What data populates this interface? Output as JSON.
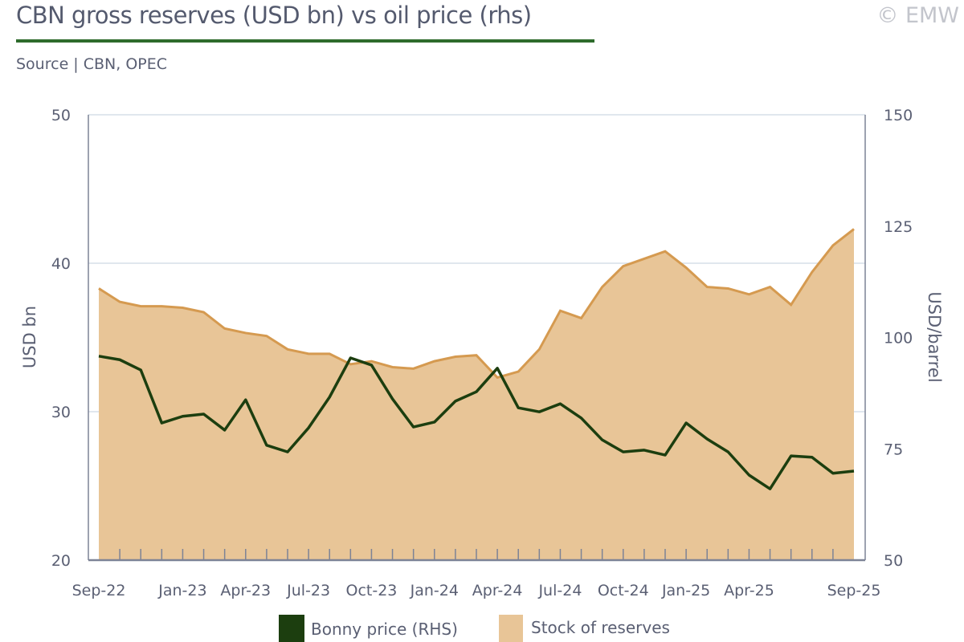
{
  "header": {
    "title": "CBN gross reserves (USD bn) vs oil price (rhs)",
    "source": "Source | CBN, OPEC",
    "copyright": "© EMW"
  },
  "chart_data": {
    "type": "line",
    "title": "CBN gross reserves (USD bn) vs oil price (rhs)",
    "ylabel": "USD bn",
    "y2label": "USD/barrel",
    "ylim": [
      20,
      50
    ],
    "y2lim": [
      50,
      150
    ],
    "yticks": [
      20,
      30,
      40,
      50
    ],
    "y2ticks": [
      50,
      75,
      100,
      125,
      150
    ],
    "grid": true,
    "legend_position": "bottom",
    "x": [
      "Sep-22",
      "Oct-22",
      "Nov-22",
      "Dec-22",
      "Jan-23",
      "Feb-23",
      "Mar-23",
      "Apr-23",
      "May-23",
      "Jun-23",
      "Jul-23",
      "Aug-23",
      "Sep-23",
      "Oct-23",
      "Nov-23",
      "Dec-23",
      "Jan-24",
      "Feb-24",
      "Mar-24",
      "Apr-24",
      "May-24",
      "Jun-24",
      "Jul-24",
      "Aug-24",
      "Sep-24",
      "Oct-24",
      "Nov-24",
      "Dec-24",
      "Jan-25",
      "Feb-25",
      "Mar-25",
      "Apr-25",
      "May-25",
      "Jun-25",
      "Jul-25",
      "Aug-25",
      "Sep-25"
    ],
    "xtick_labels": [
      "Sep-22",
      "Jan-23",
      "Apr-23",
      "Jul-23",
      "Oct-23",
      "Jan-24",
      "Apr-24",
      "Jul-24",
      "Oct-24",
      "Jan-25",
      "Apr-25",
      "Sep-25"
    ],
    "series": [
      {
        "name": "Stock of reserves",
        "axis": "left",
        "style": "area",
        "color": "#e8c597",
        "line_color": "#d59a50",
        "values": [
          38.3,
          37.4,
          37.1,
          37.1,
          37.0,
          36.7,
          35.6,
          35.3,
          35.1,
          34.2,
          33.9,
          33.9,
          33.2,
          33.4,
          33.0,
          32.9,
          33.4,
          33.7,
          33.8,
          32.3,
          32.7,
          34.2,
          36.8,
          36.3,
          38.4,
          39.8,
          40.3,
          40.8,
          39.7,
          38.4,
          38.3,
          37.9,
          38.4,
          37.2,
          39.4,
          41.2,
          42.3
        ]
      },
      {
        "name": "Bonny price (RHS)",
        "axis": "right",
        "style": "line",
        "color": "#1c3e0f",
        "values": [
          95.8,
          95.0,
          92.7,
          80.8,
          82.3,
          82.8,
          79.2,
          86.0,
          75.8,
          74.3,
          79.7,
          86.6,
          95.4,
          93.8,
          86.2,
          79.9,
          81.0,
          85.7,
          87.8,
          93.1,
          84.2,
          83.3,
          85.1,
          81.9,
          77.0,
          74.3,
          74.7,
          73.6,
          80.8,
          77.2,
          74.3,
          69.1,
          66.0,
          73.4,
          73.1,
          69.5,
          70.0
        ]
      }
    ]
  }
}
